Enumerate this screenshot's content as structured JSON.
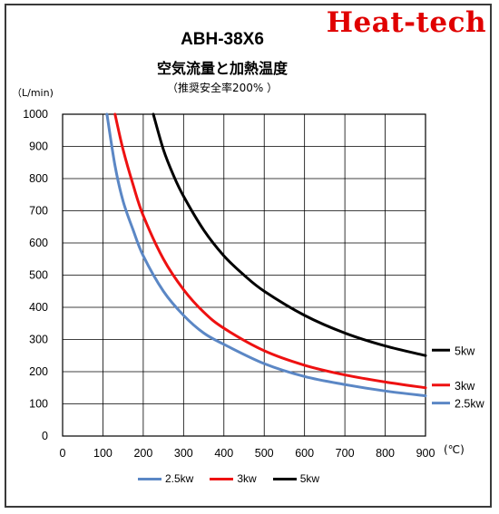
{
  "brand": "Heat-tech",
  "chart_data": {
    "type": "line",
    "title": "ABH-38X6",
    "subtitle": "空気流量と加熱温度",
    "note": "（推奨安全率200% ）",
    "ylabel": "（L/min)",
    "xlabel": "(℃)",
    "xlim": [
      0,
      900
    ],
    "ylim": [
      0,
      1000
    ],
    "x_ticks": [
      0,
      100,
      200,
      300,
      400,
      500,
      600,
      700,
      800,
      900
    ],
    "y_ticks": [
      0,
      100,
      200,
      300,
      400,
      500,
      600,
      700,
      800,
      900,
      1000
    ],
    "grid": true,
    "legend": "bottom",
    "series": [
      {
        "name": "2.5kw",
        "color": "#5b87c5",
        "x": [
          110,
          130,
          150,
          175,
          200,
          250,
          300,
          350,
          400,
          500,
          600,
          700,
          800,
          900
        ],
        "y": [
          1000,
          840,
          730,
          640,
          560,
          450,
          375,
          320,
          285,
          225,
          185,
          160,
          140,
          125
        ]
      },
      {
        "name": "3kw",
        "color": "#ee1111",
        "x": [
          130,
          150,
          175,
          200,
          250,
          300,
          350,
          400,
          500,
          600,
          700,
          800,
          900
        ],
        "y": [
          1000,
          890,
          780,
          685,
          550,
          455,
          385,
          335,
          265,
          220,
          190,
          168,
          150
        ]
      },
      {
        "name": "5kw",
        "color": "#000000",
        "x": [
          225,
          250,
          275,
          300,
          350,
          400,
          450,
          500,
          600,
          700,
          800,
          900
        ],
        "y": [
          1000,
          890,
          810,
          745,
          640,
          560,
          500,
          450,
          375,
          320,
          280,
          250
        ]
      }
    ],
    "end_labels": [
      "5kw",
      "3kw",
      "2.5kw"
    ]
  }
}
